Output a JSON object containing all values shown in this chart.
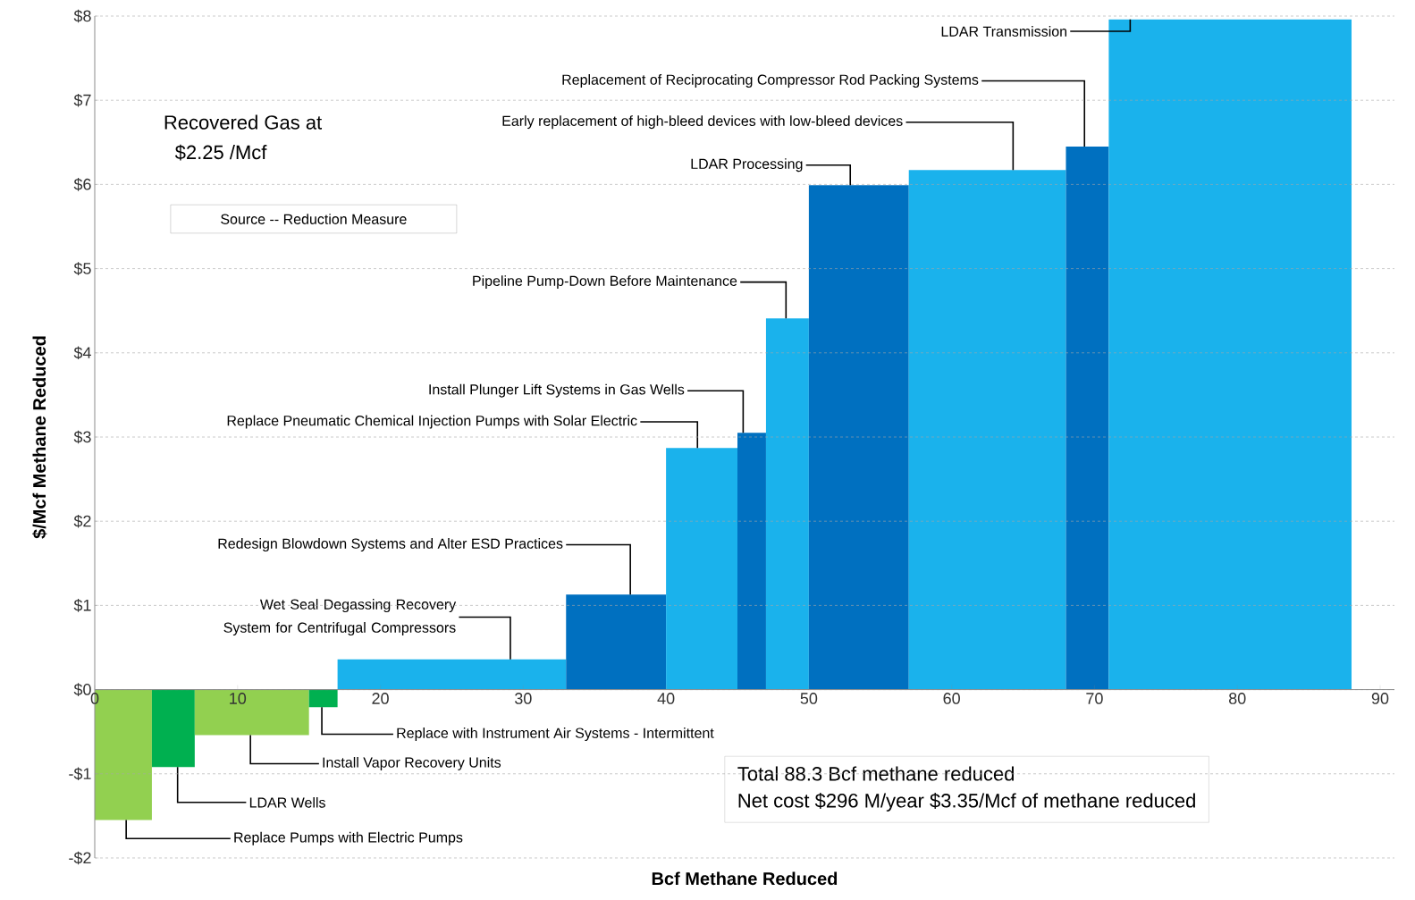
{
  "chart_data": {
    "type": "histogram",
    "xlabel": "Bcf Methane Reduced",
    "ylabel": "$/Mcf Methane Reduced",
    "bins": [
      0,
      4,
      7,
      15,
      17,
      33,
      40,
      45,
      47,
      50,
      57,
      68,
      71,
      88
    ],
    "values": [
      -1.55,
      -0.92,
      -0.54,
      -0.21,
      0.36,
      1.13,
      2.87,
      3.05,
      4.41,
      5.99,
      6.17,
      6.45,
      7.96
    ],
    "colors": [
      "#92d050",
      "#00b050",
      "#92d050",
      "#00b050",
      "#1ab2ec",
      "#0070c0",
      "#1ab2ec",
      "#0070c0",
      "#1ab2ec",
      "#0070c0",
      "#1ab2ec",
      "#0070c0",
      "#1ab2ec"
    ],
    "xlim": [
      0,
      91
    ],
    "xticks": [
      0,
      10,
      20,
      30,
      40,
      50,
      60,
      70,
      80,
      90
    ],
    "ylim": [
      -2,
      8
    ],
    "yticks": [
      {
        "value": -2,
        "label": "-$2"
      },
      {
        "value": -1,
        "label": "-$1"
      },
      {
        "value": 0,
        "label": "$0"
      },
      {
        "value": 1,
        "label": "$1"
      },
      {
        "value": 2,
        "label": "$2"
      },
      {
        "value": 3,
        "label": "$3"
      },
      {
        "value": 4,
        "label": "$4"
      },
      {
        "value": 5,
        "label": "$5"
      },
      {
        "value": 6,
        "label": "$6"
      },
      {
        "value": 7,
        "label": "$7"
      },
      {
        "value": 8,
        "label": "$8"
      }
    ],
    "grid": "y",
    "annotations": [
      {
        "text": "LDAR Transmission",
        "x": 72.5,
        "y": 7.96
      },
      {
        "text": "Replacement of Reciprocating Compressor Rod Packing Systems",
        "x": 69.3,
        "y": 6.45
      },
      {
        "text": "Early replacement of high-bleed devices with low-bleed devices",
        "x": 64.3,
        "y": 6.17
      },
      {
        "text": "LDAR Processing",
        "x": 52.9,
        "y": 5.99
      },
      {
        "text": "Pipeline Pump-Down Before Maintenance",
        "x": 48.4,
        "y": 4.41
      },
      {
        "text": "Install Plunger Lift Systems in Gas Wells",
        "x": 45.4,
        "y": 3.05
      },
      {
        "text": "Replace Pneumatic Chemical Injection Pumps with Solar Electric",
        "x": 42.2,
        "y": 2.87
      },
      {
        "text": "Redesign Blowdown Systems and Alter ESD Practices",
        "x": 37.5,
        "y": 1.13
      },
      {
        "text": "Wet Seal Degassing Recovery System for Centrifugal Compressors",
        "x": 29.1,
        "y": 0.36
      },
      {
        "text": "Replace with Instrument Air Systems - Intermittent",
        "x": 15.9,
        "y": -0.21
      },
      {
        "text": "Install Vapor Recovery Units",
        "x": 10.9,
        "y": -0.54
      },
      {
        "text": "LDAR Wells",
        "x": 5.8,
        "y": -0.92
      },
      {
        "text": "Replace Pumps with Electric Pumps",
        "x": 2.2,
        "y": -1.55
      },
      "Recovered Gas at",
      "$2.25 /Mcf",
      "Source -- Reduction Measure",
      "Total 88.3 Bcf methane reduced",
      "Net cost $296 M/year   $3.35/Mcf of methane reduced"
    ]
  }
}
